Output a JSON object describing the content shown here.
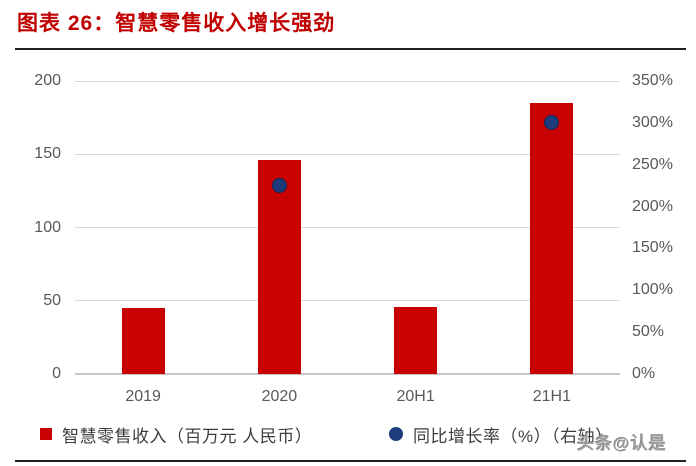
{
  "header": {
    "title": "图表 26：智慧零售收入增长强劲"
  },
  "watermark": "头条@认是",
  "colors": {
    "title": "#C00000",
    "bar": "#C80202",
    "dot": "#1C3C7C",
    "axis_text": "#595959",
    "gridline": "#D9D9D9",
    "rule": "#1F1F1F"
  },
  "chart_data": {
    "type": "bar",
    "subtype": "bar+scatter combo, dual axis",
    "categories": [
      "2019",
      "2020",
      "20H1",
      "21H1"
    ],
    "series": [
      {
        "name": "智慧零售收入（百万元 人民币）",
        "type": "bar",
        "axis": "left",
        "values": [
          45,
          146,
          46,
          185
        ]
      },
      {
        "name": "同比增长率（%）（右轴）",
        "type": "scatter",
        "axis": "right",
        "values": [
          null,
          225,
          null,
          300
        ]
      }
    ],
    "left_axis": {
      "ticks": [
        0,
        50,
        100,
        150,
        200
      ],
      "range": [
        0,
        200
      ]
    },
    "right_axis": {
      "ticks": [
        "0%",
        "50%",
        "100%",
        "150%",
        "200%",
        "250%",
        "300%",
        "350%"
      ],
      "range": [
        0,
        350
      ]
    },
    "grid": "horizontal",
    "legend_position": "bottom"
  }
}
